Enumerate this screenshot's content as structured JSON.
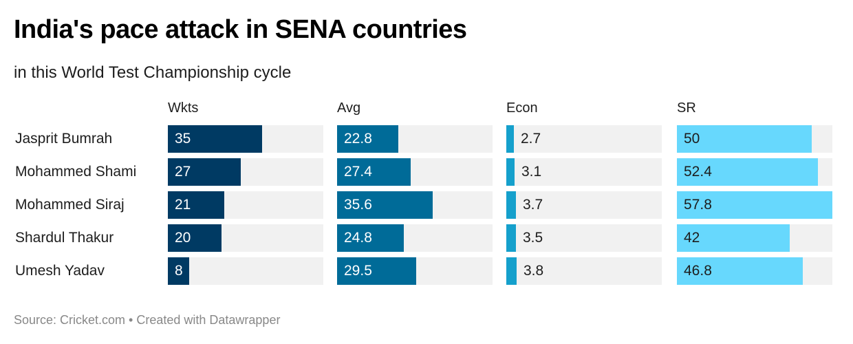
{
  "header": {
    "title": "India's pace attack in SENA countries",
    "subtitle": "in this World Test Championship cycle"
  },
  "footer": {
    "text": "Source: Cricket.com • Created with Datawrapper"
  },
  "chart_data": {
    "type": "bar",
    "title": "India's pace attack in SENA countries",
    "subtitle": "in this World Test Championship cycle",
    "orientation": "horizontal",
    "layout": "small-multiples",
    "categories": [
      "Jasprit Bumrah",
      "Mohammed Shami",
      "Mohammed Siraj",
      "Shardul Thakur",
      "Umesh Yadav"
    ],
    "xlim": [
      0,
      57.8
    ],
    "grid": false,
    "series": [
      {
        "name": "Wkts",
        "color": "#003a63",
        "label_color_inside": "#ffffff",
        "values": [
          35,
          27,
          21,
          20,
          8
        ]
      },
      {
        "name": "Avg",
        "color": "#006b98",
        "label_color_inside": "#ffffff",
        "values": [
          22.8,
          27.4,
          35.6,
          24.8,
          29.5
        ]
      },
      {
        "name": "Econ",
        "color": "#15a0cc",
        "label_color_inside": "#ffffff",
        "values": [
          2.7,
          3.1,
          3.7,
          3.5,
          3.8
        ]
      },
      {
        "name": "SR",
        "color": "#67d8fd",
        "label_color_inside": "#1d1d1d",
        "values": [
          50,
          52.4,
          57.8,
          42,
          46.8
        ]
      }
    ],
    "value_labels": [
      [
        "35",
        "27",
        "21",
        "20",
        "8"
      ],
      [
        "22.8",
        "27.4",
        "35.6",
        "24.8",
        "29.5"
      ],
      [
        "2.7",
        "3.1",
        "3.7",
        "3.5",
        "3.8"
      ],
      [
        "50",
        "52.4",
        "57.8",
        "42",
        "46.8"
      ]
    ],
    "source": "Cricket.com"
  }
}
